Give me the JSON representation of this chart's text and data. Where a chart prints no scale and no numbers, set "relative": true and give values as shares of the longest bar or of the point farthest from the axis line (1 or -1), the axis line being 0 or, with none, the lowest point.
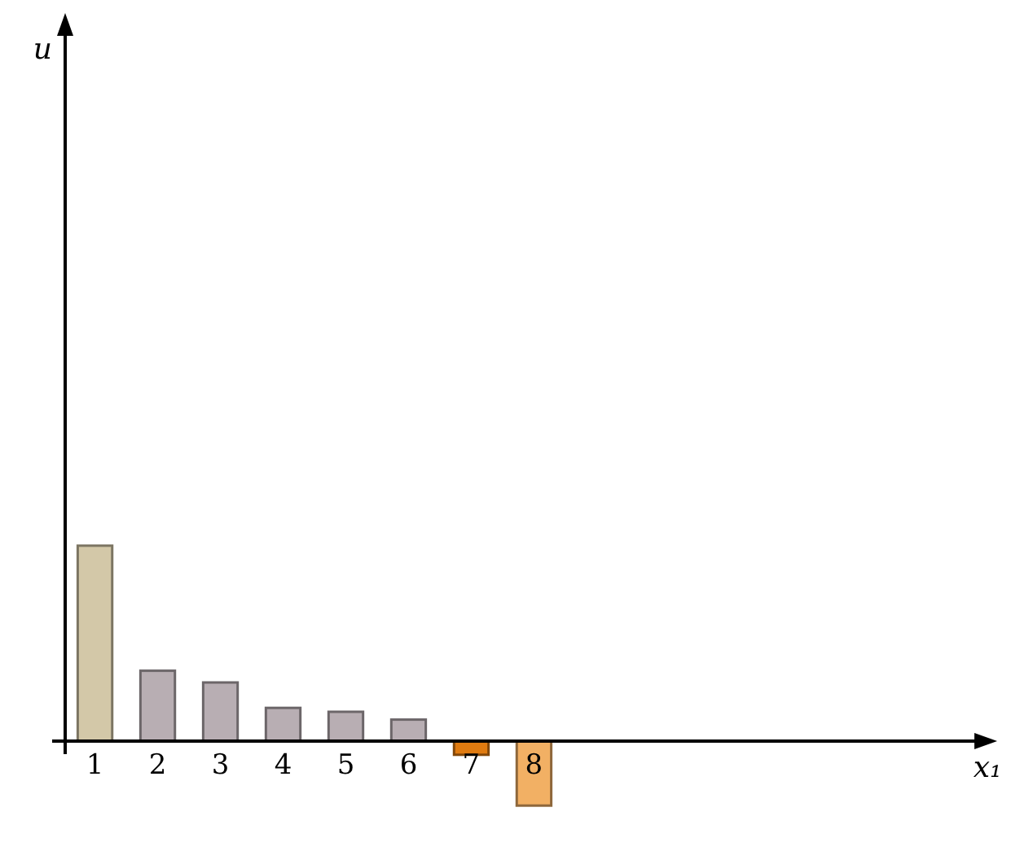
{
  "chart_data": {
    "type": "bar",
    "annotations": [
      "u",
      "x₁"
    ],
    "relative": true,
    "categories": [
      "1",
      "2",
      "3",
      "4",
      "5",
      "6",
      "7",
      "8"
    ],
    "values": [
      1,
      0.36,
      0.3,
      0.17,
      0.15,
      0.11,
      -0.07,
      -0.33
    ],
    "colors": [
      "#d3c8a8",
      "#b8aeb3",
      "#b8aeb3",
      "#b8aeb3",
      "#b8aeb3",
      "#b8aeb3",
      "#e07b10",
      "#f2b064"
    ]
  }
}
